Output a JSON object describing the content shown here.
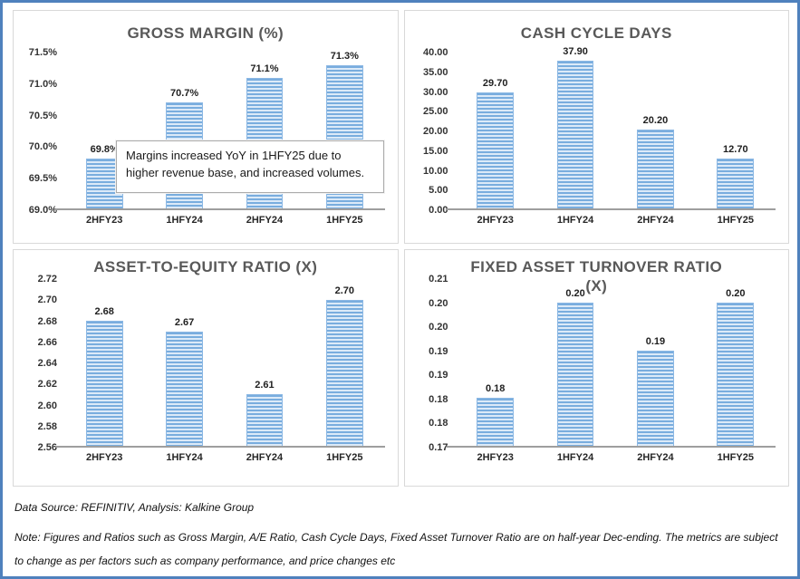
{
  "colors": {
    "outer_border": "#4F81BD",
    "panel_border": "#D9D9D9",
    "title_text": "#595959",
    "bar_stripe_dark": "#79ADDE",
    "bar_stripe_light": "#DCEAF8",
    "bar_edge": "#8CB8E4",
    "axis_line": "#9E9E9E",
    "label_text": "#262626"
  },
  "chart_data": [
    {
      "type": "bar",
      "title": "GROSS MARGIN (%)",
      "categories": [
        "2HFY23",
        "1HFY24",
        "2HFY24",
        "1HFY25"
      ],
      "values": [
        69.8,
        70.7,
        71.1,
        71.3
      ],
      "data_labels": [
        "69.8%",
        "70.7%",
        "71.1%",
        "71.3%"
      ],
      "yticks": [
        "71.5%",
        "71.0%",
        "70.5%",
        "70.0%",
        "69.5%",
        "69.0%"
      ],
      "ylim": [
        69.0,
        71.5
      ],
      "grid": false,
      "legend": false,
      "annotation": "Margins increased  YoY in 1HFY25 due to higher revenue base, and increased volumes."
    },
    {
      "type": "bar",
      "title": "CASH CYCLE DAYS",
      "categories": [
        "2HFY23",
        "1HFY24",
        "2HFY24",
        "1HFY25"
      ],
      "values": [
        29.7,
        37.9,
        20.2,
        12.7
      ],
      "data_labels": [
        "29.70",
        "37.90",
        "20.20",
        "12.70"
      ],
      "yticks": [
        "40.00",
        "35.00",
        "30.00",
        "25.00",
        "20.00",
        "15.00",
        "10.00",
        "5.00",
        "0.00"
      ],
      "ylim": [
        0,
        40
      ],
      "grid": false,
      "legend": false
    },
    {
      "type": "bar",
      "title": "ASSET-TO-EQUITY RATIO (X)",
      "categories": [
        "2HFY23",
        "1HFY24",
        "2HFY24",
        "1HFY25"
      ],
      "values": [
        2.68,
        2.67,
        2.61,
        2.7
      ],
      "data_labels": [
        "2.68",
        "2.67",
        "2.61",
        "2.70"
      ],
      "yticks": [
        "2.72",
        "2.70",
        "2.68",
        "2.66",
        "2.64",
        "2.62",
        "2.60",
        "2.58",
        "2.56"
      ],
      "ylim": [
        2.56,
        2.72
      ],
      "grid": false,
      "legend": false
    },
    {
      "type": "bar",
      "title": "FIXED ASSET TURNOVER RATIO (X)",
      "categories": [
        "2HFY23",
        "1HFY24",
        "2HFY24",
        "1HFY25"
      ],
      "values": [
        0.18,
        0.2,
        0.19,
        0.2
      ],
      "data_labels": [
        "0.18",
        "0.20",
        "0.19",
        "0.20"
      ],
      "yticks": [
        "0.21",
        "0.20",
        "0.20",
        "0.19",
        "0.19",
        "0.18",
        "0.18",
        "0.17"
      ],
      "ylim": [
        0.17,
        0.205
      ],
      "grid": false,
      "legend": false
    }
  ],
  "footer": {
    "data_source": "Data Source: REFINITIV, Analysis: Kalkine Group",
    "note": "Note: Figures and Ratios such as Gross Margin, A/E Ratio, Cash Cycle Days, Fixed Asset Turnover Ratio  are on half-year Dec-ending. The metrics are subject to change as per factors such as company performance, and price changes etc"
  }
}
